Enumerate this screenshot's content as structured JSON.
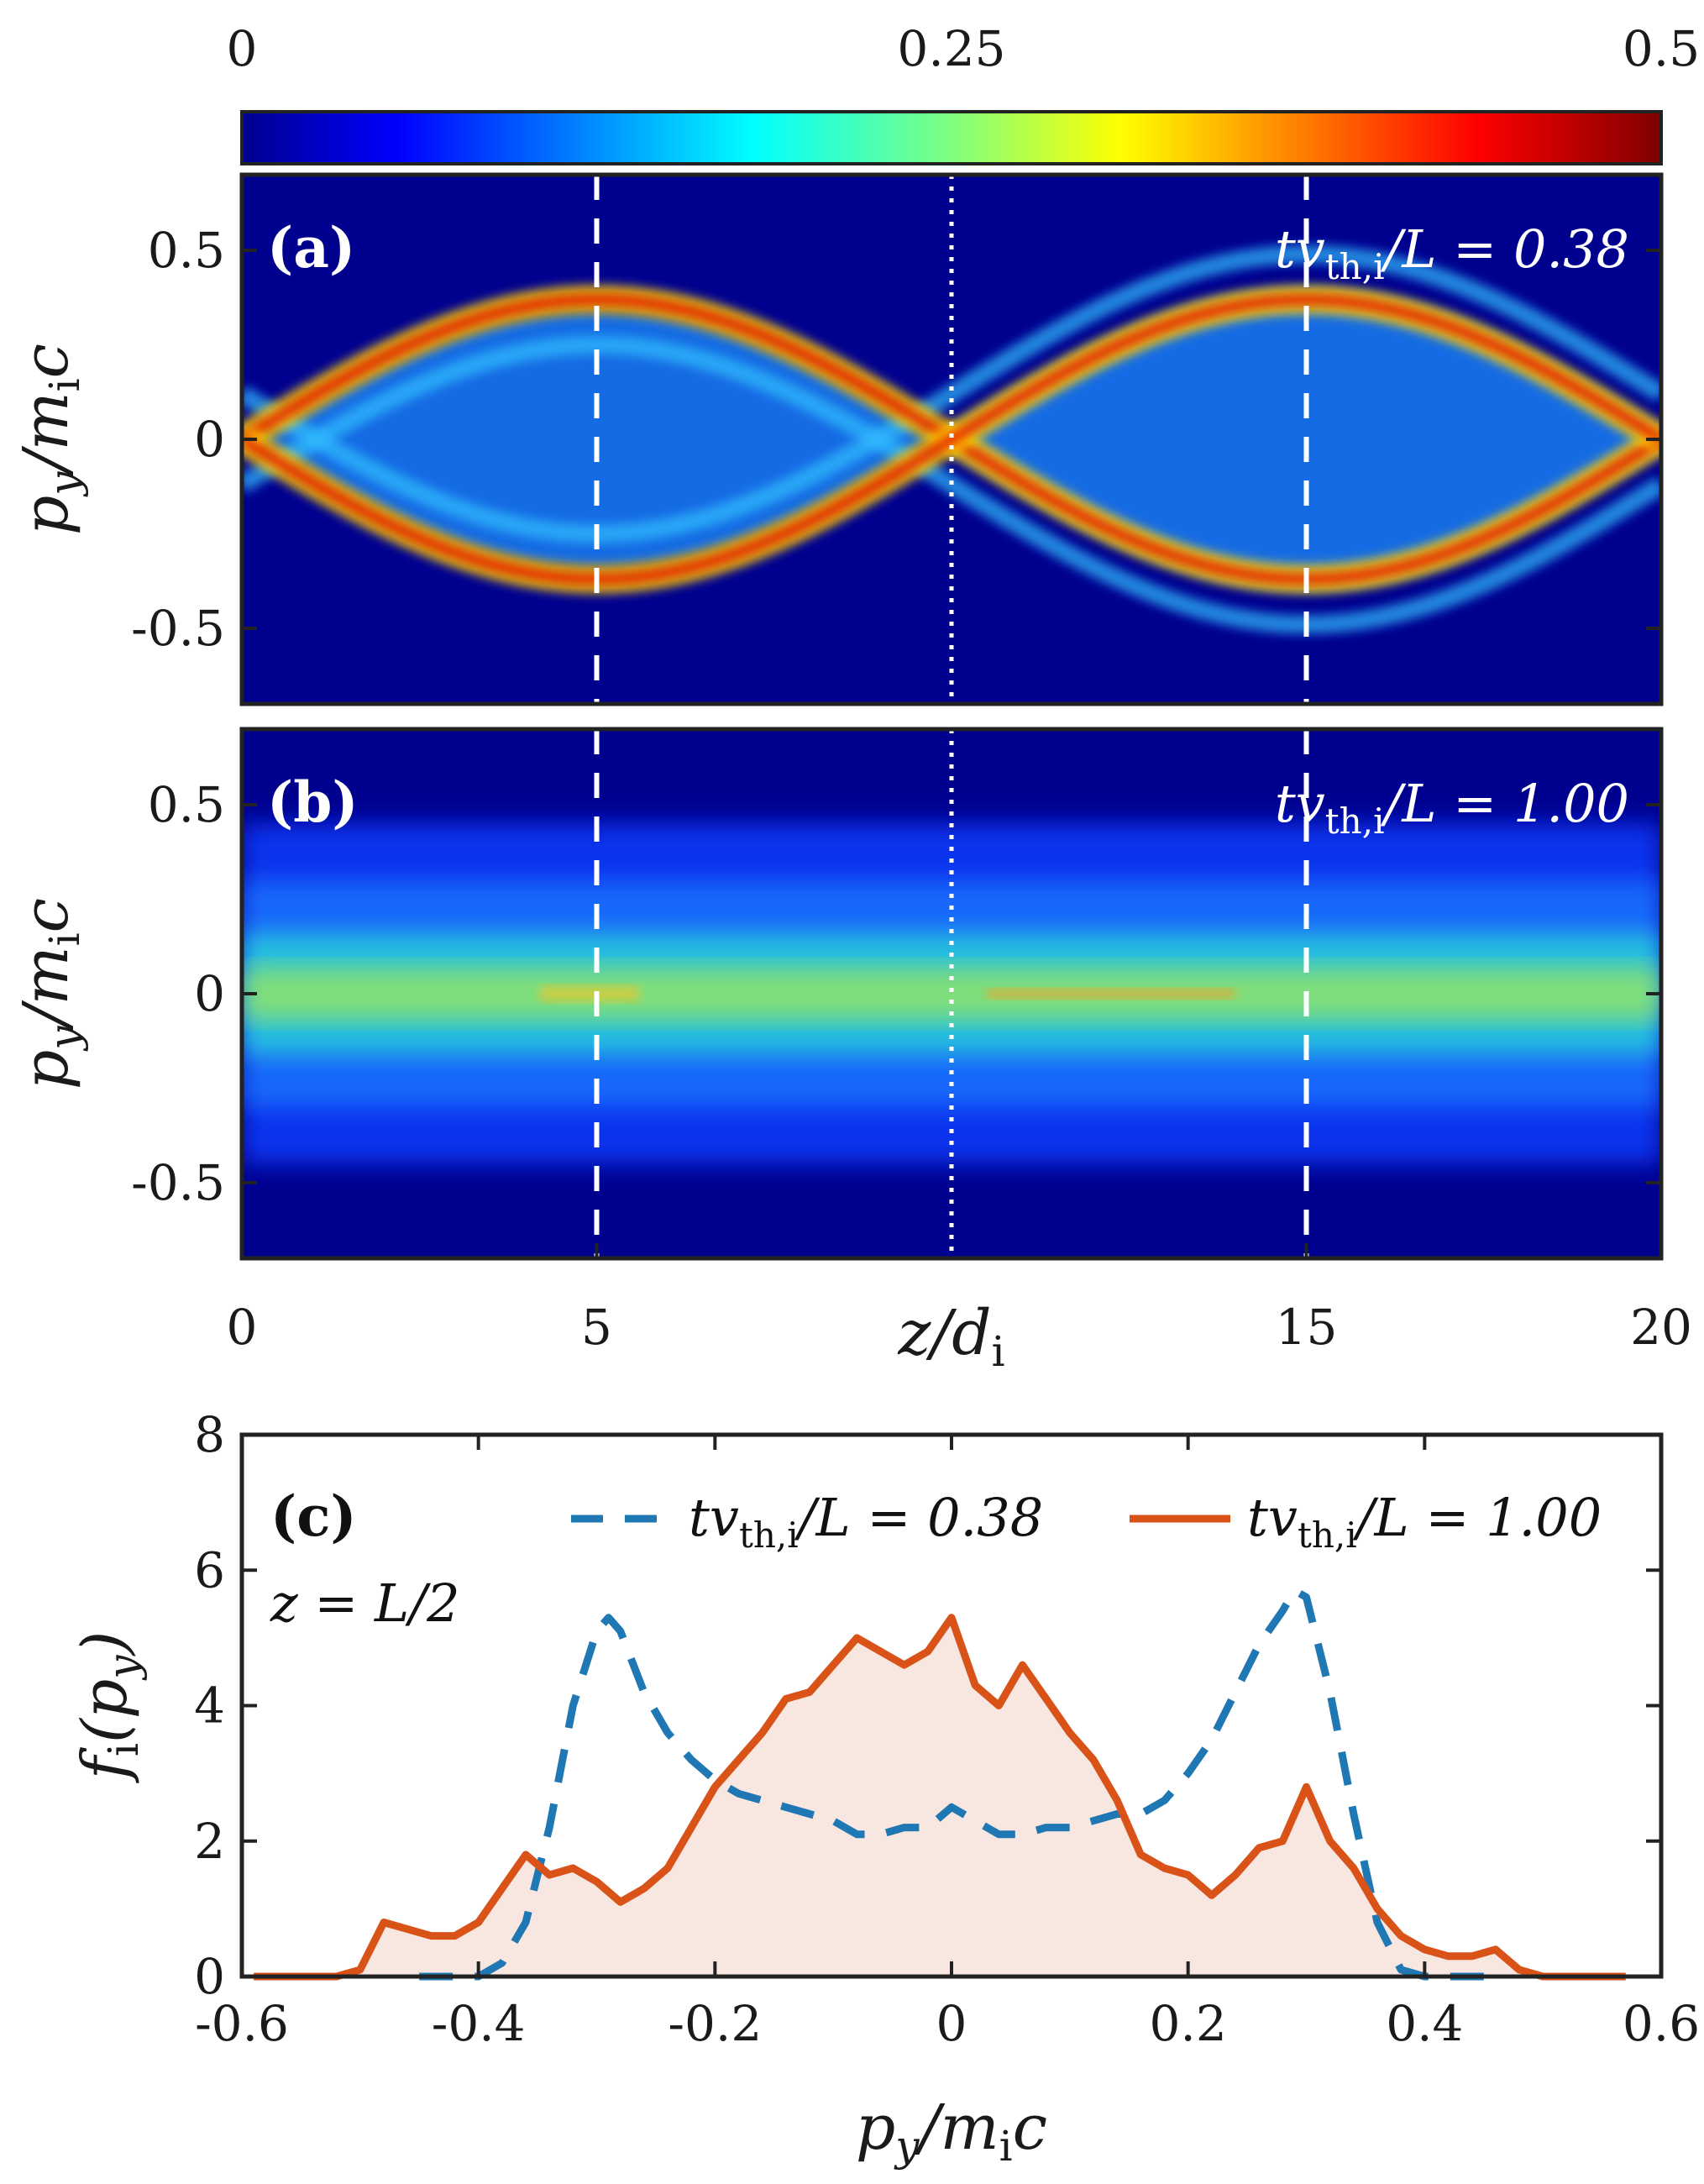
{
  "colorbar": {
    "ticks": [
      "0",
      "0.25",
      "0.5"
    ],
    "range": [
      0,
      0.5
    ],
    "colormap": "jet"
  },
  "shared_x": {
    "label_var": "z",
    "label_sub": "d",
    "label_subsub": "i",
    "label_text": "z/d_i",
    "ticks": [
      "0",
      "5",
      "15",
      "20"
    ],
    "tick_values": [
      0,
      5,
      15,
      20
    ],
    "range": [
      0,
      20
    ]
  },
  "panel_a": {
    "tag": "(a)",
    "annotation": "tv_th,i/L = 0.38",
    "ylabel": "p_y/m_i c",
    "yticks": [
      "0.5",
      "0",
      "-0.5"
    ],
    "ytick_values": [
      0.5,
      0,
      -0.5
    ],
    "ylim": [
      -0.7,
      0.7
    ],
    "dashed_lines_at": [
      5,
      15
    ],
    "dotted_line_at": 10
  },
  "panel_b": {
    "tag": "(b)",
    "annotation": "tv_th,i/L = 1.00",
    "ylabel": "p_y/m_i c",
    "yticks": [
      "0.5",
      "0",
      "-0.5"
    ],
    "ytick_values": [
      0.5,
      0,
      -0.5
    ],
    "ylim": [
      -0.7,
      0.7
    ],
    "dashed_lines_at": [
      5,
      15
    ],
    "dotted_line_at": 10
  },
  "panel_c": {
    "tag": "(c)",
    "location_note": "z = L/2",
    "legend": [
      "tv_th,i/L = 0.38",
      "tv_th,i/L = 1.00"
    ],
    "ylabel": "f_i(p_y)",
    "xlabel": "p_y/m_i c",
    "xticks": [
      "-0.6",
      "-0.4",
      "-0.2",
      "0",
      "0.2",
      "0.4",
      "0.6"
    ],
    "xtick_values": [
      -0.6,
      -0.4,
      -0.2,
      0,
      0.2,
      0.4,
      0.6
    ],
    "yticks": [
      "0",
      "2",
      "4",
      "6",
      "8"
    ],
    "ytick_values": [
      0,
      2,
      4,
      6,
      8
    ]
  },
  "colors": {
    "series_038": "#1f77b4",
    "series_100": "#d95319",
    "fill_100": "#f8e6e0",
    "heatmap_bg": "#00008f",
    "axis": "#222222"
  },
  "chart_data": [
    {
      "type": "heatmap",
      "panel": "a",
      "description_of_structure": "two cos-shaped streams p_y = +/-A cos(2*pi*(z-5)/20)",
      "stream_amplitude": 0.37,
      "stream_phase_peak_z": 5,
      "x_range": [
        0,
        20
      ],
      "y_range": [
        -0.7,
        0.7
      ],
      "value_range": [
        0,
        0.5
      ]
    },
    {
      "type": "heatmap",
      "panel": "b",
      "description_of_structure": "broadened distribution centered near p_y = 0",
      "x_range": [
        0,
        20
      ],
      "y_range": [
        -0.7,
        0.7
      ],
      "value_range": [
        0,
        0.5
      ]
    },
    {
      "type": "line",
      "panel": "c",
      "xlim": [
        -0.6,
        0.6
      ],
      "ylim": [
        0,
        8
      ],
      "xlabel": "p_y/m_i c",
      "ylabel": "f_i(p_y)",
      "series": [
        {
          "name": "tv_th,i/L = 0.38",
          "style": "dashed",
          "x": [
            -0.45,
            -0.4,
            -0.38,
            -0.36,
            -0.34,
            -0.32,
            -0.3,
            -0.29,
            -0.28,
            -0.26,
            -0.24,
            -0.22,
            -0.2,
            -0.18,
            -0.16,
            -0.14,
            -0.12,
            -0.1,
            -0.08,
            -0.06,
            -0.04,
            -0.02,
            0,
            0.02,
            0.04,
            0.06,
            0.08,
            0.1,
            0.12,
            0.14,
            0.16,
            0.18,
            0.2,
            0.22,
            0.24,
            0.26,
            0.28,
            0.29,
            0.3,
            0.32,
            0.34,
            0.36,
            0.38,
            0.4,
            0.45
          ],
          "y": [
            0,
            0,
            0.2,
            0.8,
            2.2,
            4.0,
            5.1,
            5.3,
            5.1,
            4.2,
            3.6,
            3.2,
            2.9,
            2.7,
            2.6,
            2.5,
            2.4,
            2.3,
            2.1,
            2.1,
            2.2,
            2.2,
            2.5,
            2.3,
            2.1,
            2.1,
            2.2,
            2.2,
            2.3,
            2.4,
            2.4,
            2.6,
            3.0,
            3.5,
            4.2,
            4.9,
            5.4,
            5.7,
            5.6,
            4.2,
            2.4,
            0.8,
            0.1,
            0,
            0
          ]
        },
        {
          "name": "tv_th,i/L = 1.00",
          "style": "solid",
          "x": [
            -0.59,
            -0.52,
            -0.5,
            -0.48,
            -0.46,
            -0.44,
            -0.42,
            -0.4,
            -0.38,
            -0.36,
            -0.34,
            -0.32,
            -0.3,
            -0.28,
            -0.26,
            -0.24,
            -0.22,
            -0.2,
            -0.18,
            -0.16,
            -0.14,
            -0.12,
            -0.1,
            -0.08,
            -0.06,
            -0.04,
            -0.02,
            0,
            0.02,
            0.04,
            0.06,
            0.08,
            0.1,
            0.12,
            0.14,
            0.16,
            0.18,
            0.2,
            0.22,
            0.24,
            0.26,
            0.28,
            0.3,
            0.32,
            0.34,
            0.36,
            0.38,
            0.4,
            0.42,
            0.44,
            0.46,
            0.48,
            0.5,
            0.57
          ],
          "y": [
            0,
            0,
            0.1,
            0.8,
            0.7,
            0.6,
            0.6,
            0.8,
            1.3,
            1.8,
            1.5,
            1.6,
            1.4,
            1.1,
            1.3,
            1.6,
            2.2,
            2.8,
            3.2,
            3.6,
            4.1,
            4.2,
            4.6,
            5.0,
            4.8,
            4.6,
            4.8,
            5.3,
            4.3,
            4.0,
            4.6,
            4.1,
            3.6,
            3.2,
            2.6,
            1.8,
            1.6,
            1.5,
            1.2,
            1.5,
            1.9,
            2.0,
            2.8,
            2.0,
            1.6,
            1.0,
            0.6,
            0.4,
            0.3,
            0.3,
            0.4,
            0.1,
            0,
            0
          ]
        }
      ]
    }
  ]
}
